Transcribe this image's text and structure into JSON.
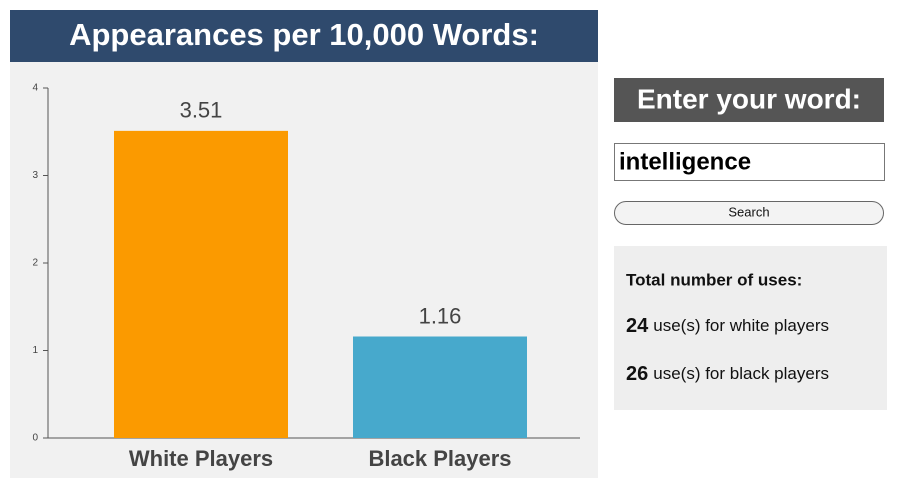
{
  "chart_data": {
    "type": "bar",
    "title": "Appearances per 10,000 Words:",
    "categories": [
      "White Players",
      "Black Players"
    ],
    "values": [
      3.51,
      1.16
    ],
    "colors": [
      "#fb9a00",
      "#47a9cc"
    ],
    "ylim": [
      0,
      4
    ],
    "yticks": [
      0,
      1,
      2,
      3,
      4
    ],
    "grid": false
  },
  "search": {
    "heading": "Enter your word:",
    "input": "intelligence",
    "button": "Search"
  },
  "totals": {
    "title": "Total number of uses:",
    "rows": [
      {
        "count": "24",
        "text": "use(s) for white players"
      },
      {
        "count": "26",
        "text": "use(s) for black players"
      }
    ]
  }
}
